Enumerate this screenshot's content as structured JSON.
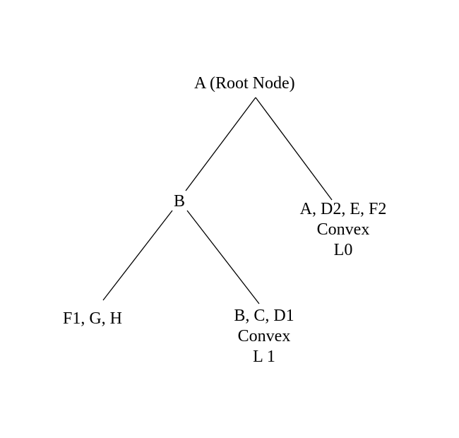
{
  "diagram": {
    "root": {
      "label": "A (Root Node)"
    },
    "node_b": {
      "label": "B"
    },
    "leaf_right": {
      "line1": "A, D2, E, F2",
      "line2": "Convex",
      "line3": "L0"
    },
    "leaf_left": {
      "line1": "F1, G, H"
    },
    "leaf_mid": {
      "line1": "B, C, D1",
      "line2": "Convex",
      "line3": "L 1"
    },
    "colors": {
      "line": "#000000",
      "text": "#000000",
      "background": "#ffffff"
    }
  }
}
